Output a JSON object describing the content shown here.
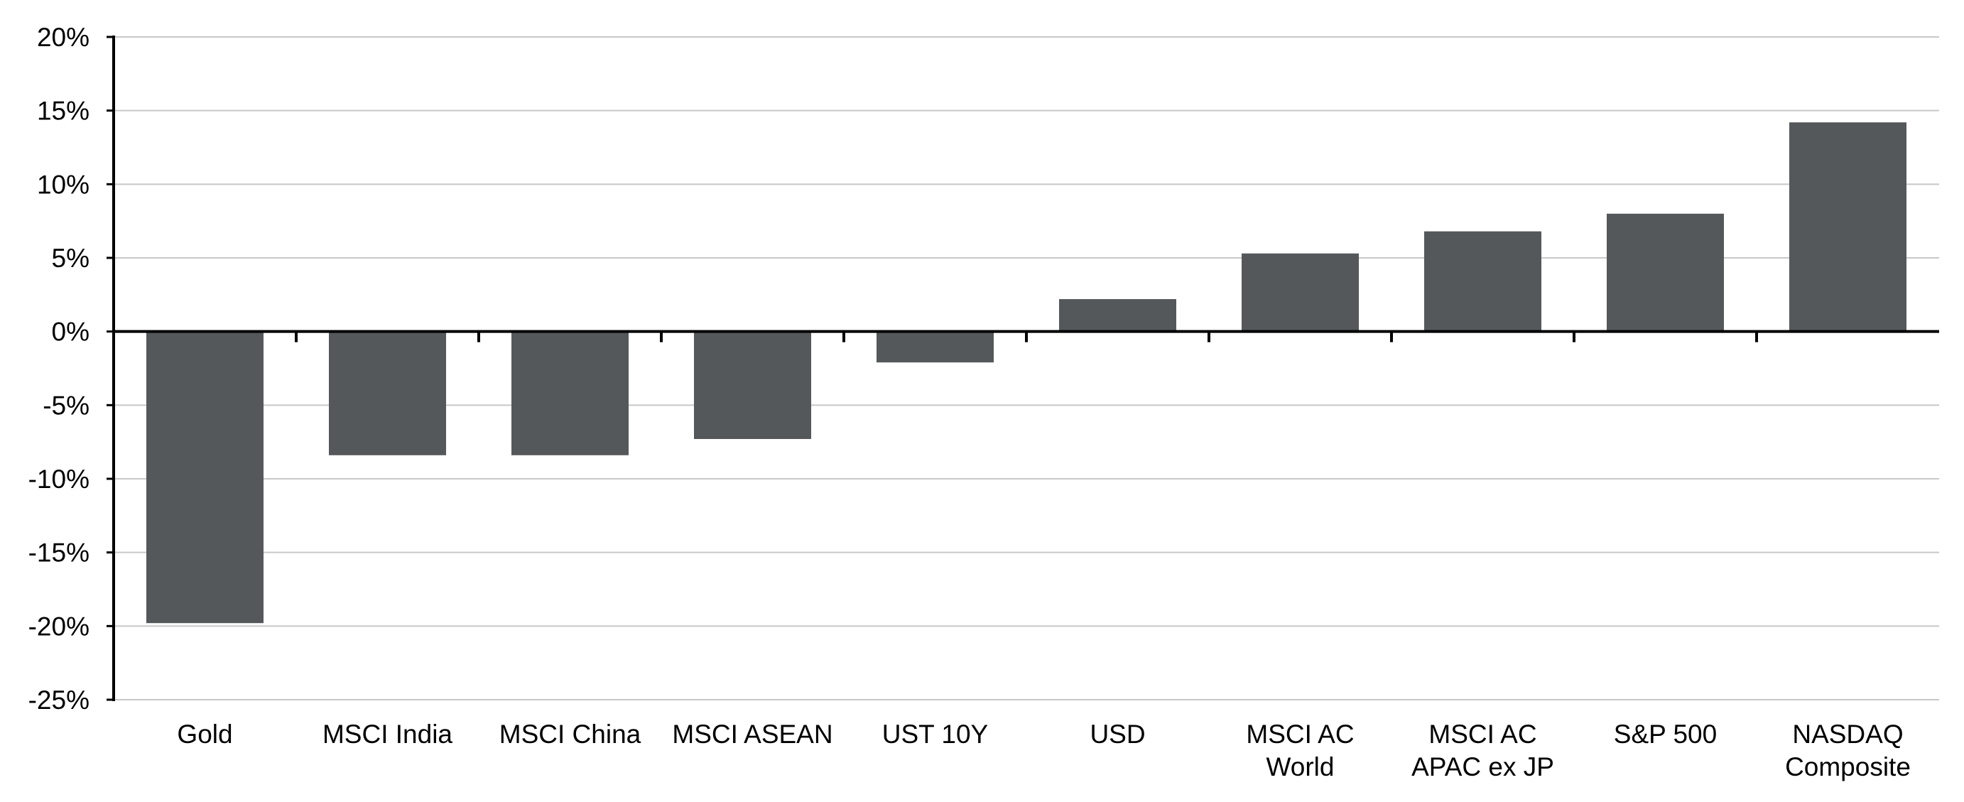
{
  "chart_data": {
    "type": "bar",
    "title": "",
    "xlabel": "",
    "ylabel": "",
    "ylim": [
      -25,
      20
    ],
    "y_ticks": [
      "20%",
      "15%",
      "10%",
      "5%",
      "0%",
      "-5%",
      "-10%",
      "-15%",
      "-20%",
      "-25%"
    ],
    "y_tick_values": [
      20,
      15,
      10,
      5,
      0,
      -5,
      -10,
      -15,
      -20,
      -25
    ],
    "grid": true,
    "categories": [
      [
        "Gold"
      ],
      [
        "MSCI India"
      ],
      [
        "MSCI China"
      ],
      [
        "MSCI ASEAN"
      ],
      [
        "UST 10Y"
      ],
      [
        "USD"
      ],
      [
        "MSCI AC",
        "World"
      ],
      [
        "MSCI AC",
        "APAC ex JP"
      ],
      [
        "S&P 500"
      ],
      [
        "NASDAQ",
        "Composite"
      ]
    ],
    "values": [
      -19.8,
      -8.4,
      -8.4,
      -7.3,
      -2.1,
      2.2,
      5.3,
      6.8,
      8.0,
      14.2
    ]
  },
  "colors": {
    "bar": "#55585b",
    "grid": "#c8c8c8",
    "axis": "#000000"
  }
}
